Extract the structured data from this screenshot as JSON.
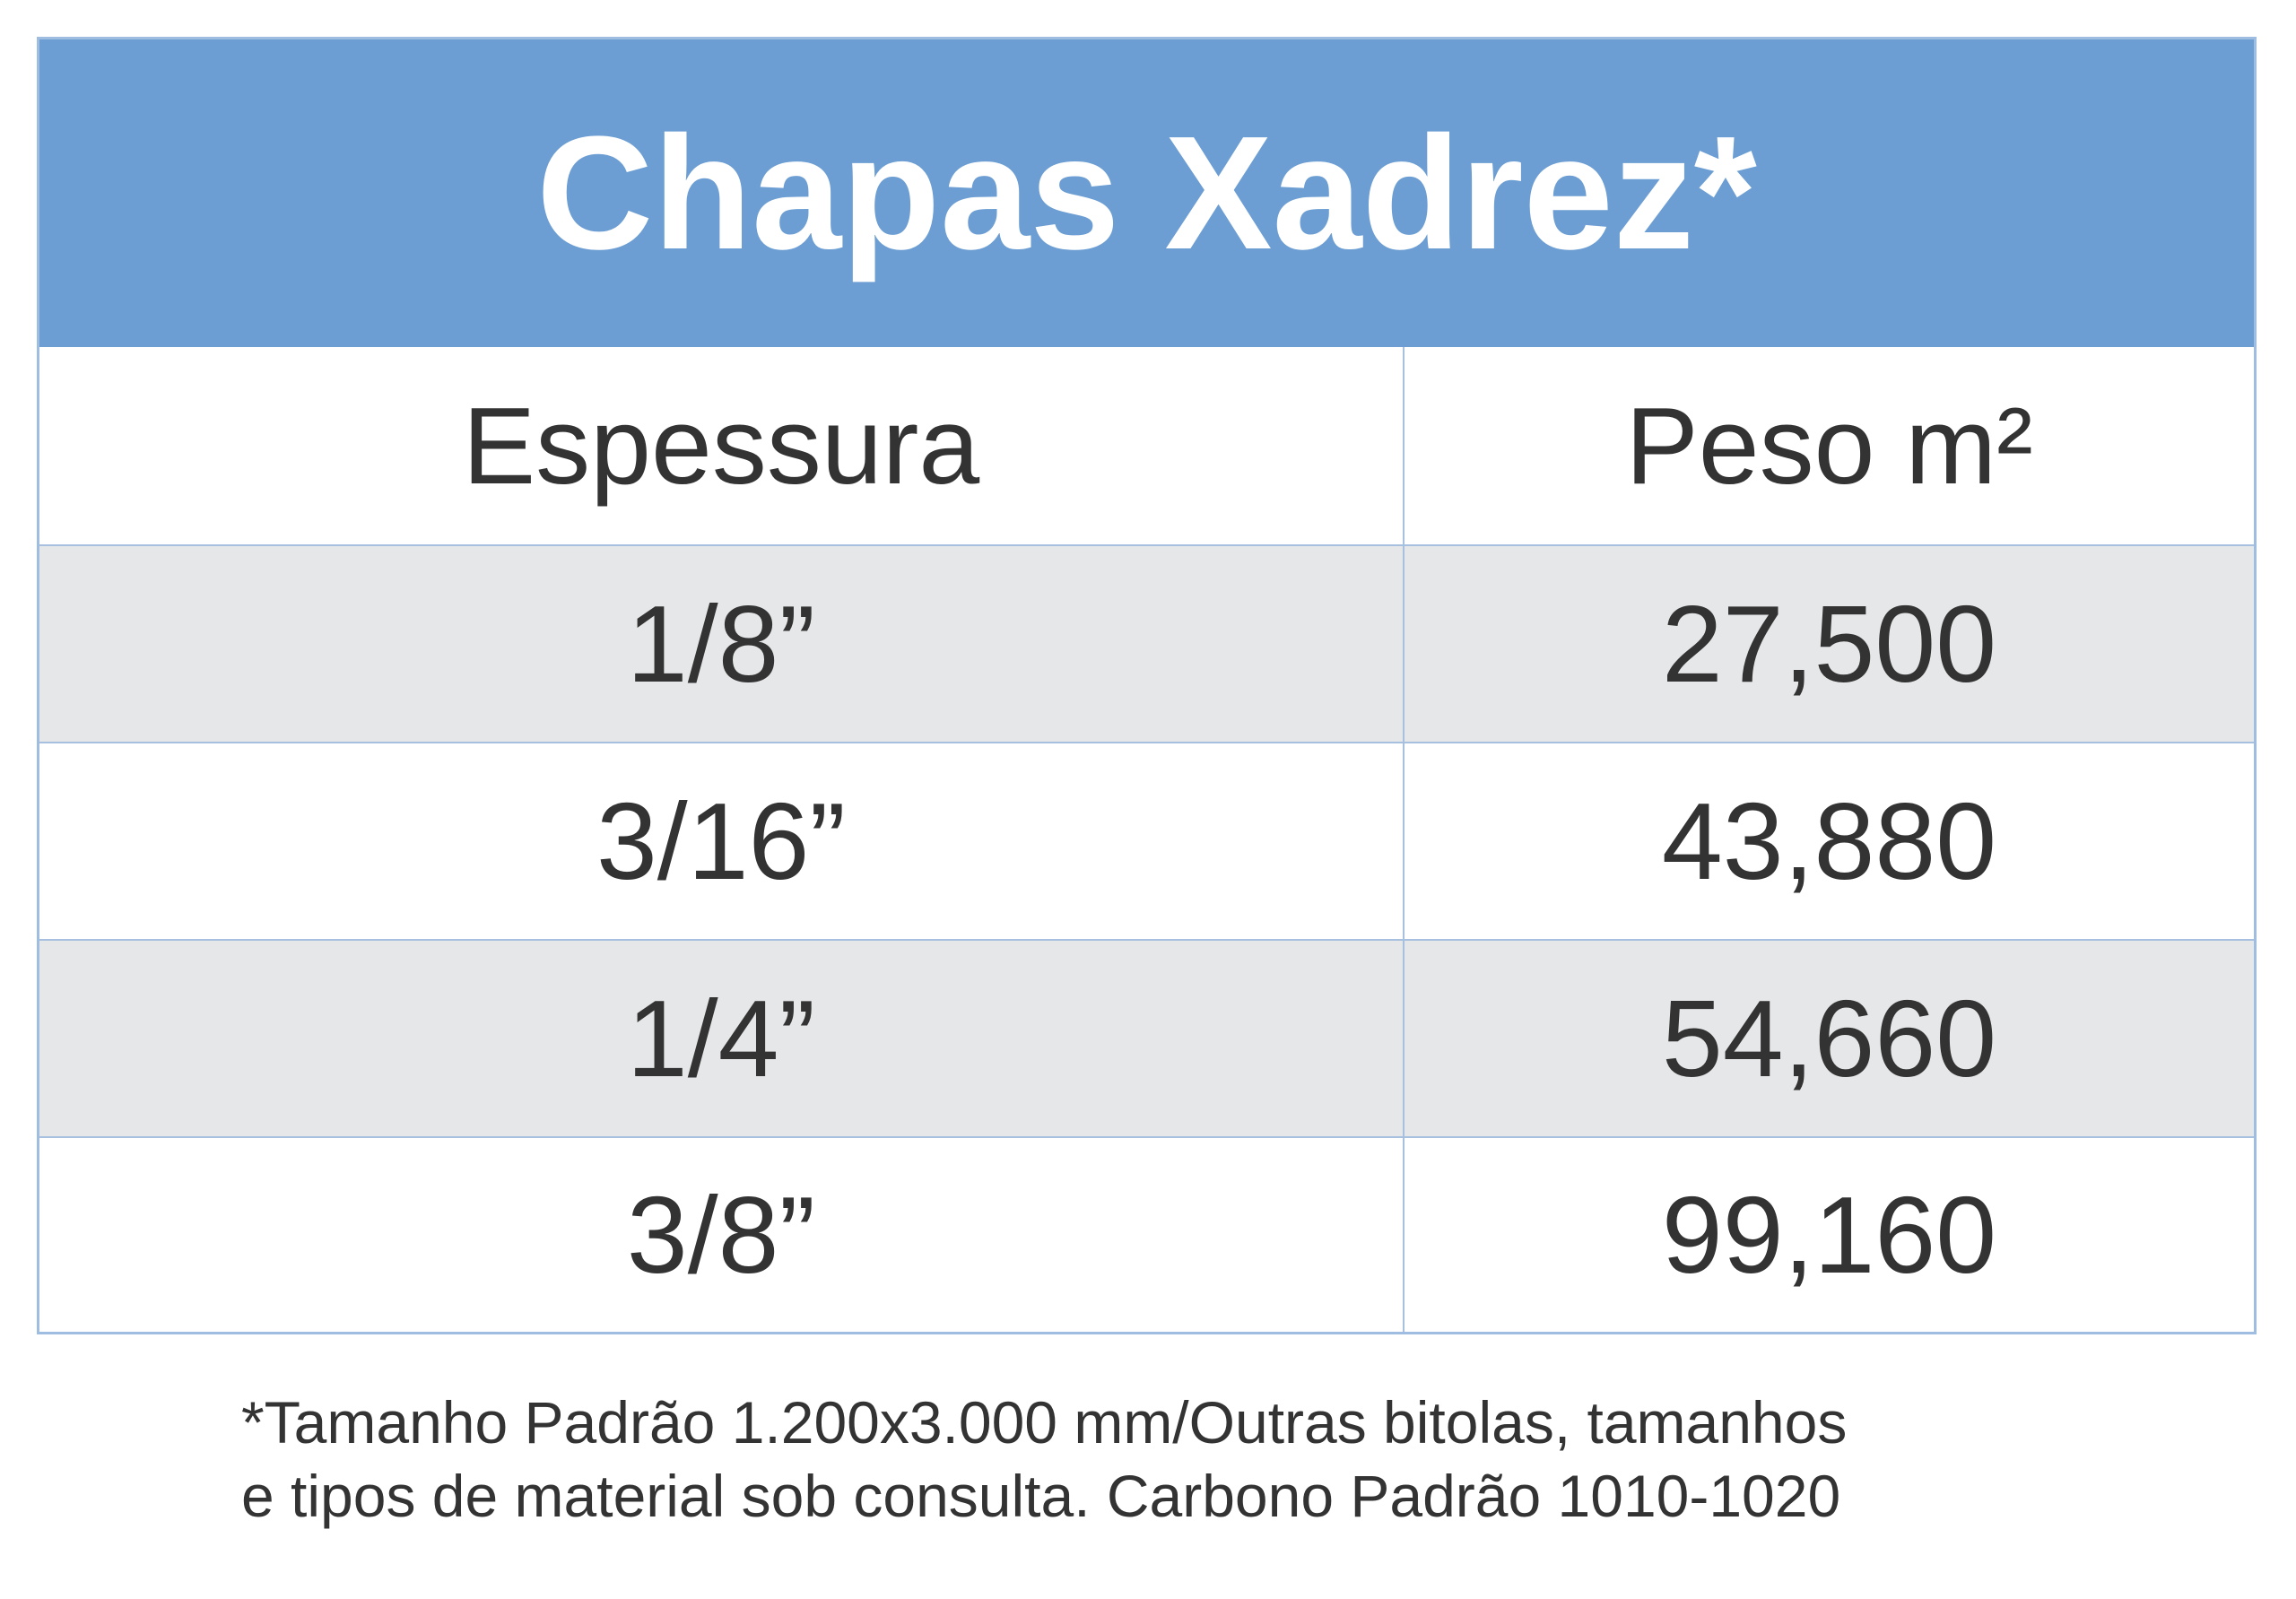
{
  "header": {
    "title": "Chapas Xadrez*"
  },
  "table": {
    "columns": [
      "Espessura",
      "Peso m²"
    ],
    "rows": [
      [
        "1/8”",
        "27,500"
      ],
      [
        "3/16”",
        "43,880"
      ],
      [
        "1/4”",
        "54,660"
      ],
      [
        "3/8”",
        "99,160"
      ]
    ]
  },
  "footnote": [
    "*Tamanho Padrão 1.200x3.000 mm/Outras bitolas, tamanhos",
    "e tipos de material sob consulta. Carbono Padrão 1010-1020"
  ]
}
